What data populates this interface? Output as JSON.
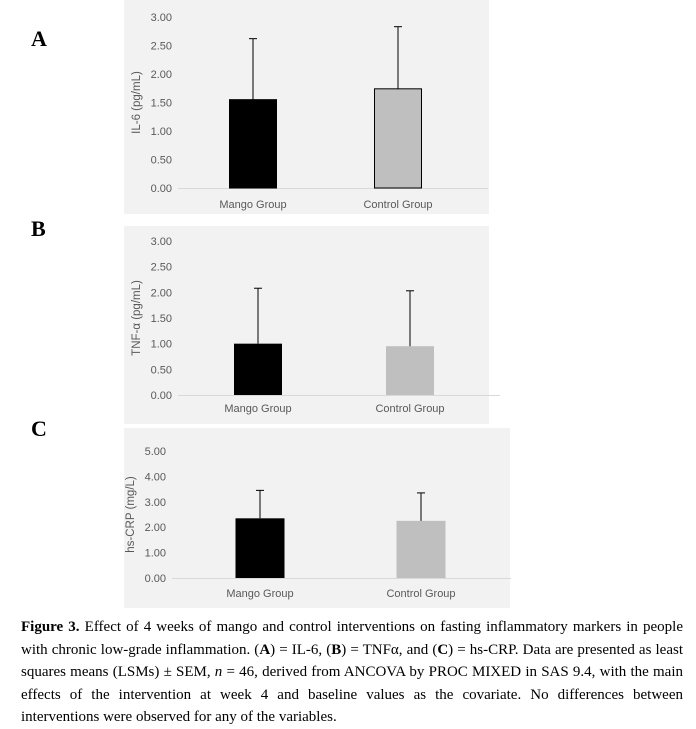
{
  "panels": [
    {
      "letter": "A"
    },
    {
      "letter": "B"
    },
    {
      "letter": "C"
    }
  ],
  "chart_data": [
    {
      "type": "bar",
      "categories": [
        "Mango Group",
        "Control Group"
      ],
      "values": [
        1.55,
        1.74
      ],
      "errors": [
        1.07,
        1.09
      ],
      "ylabel": "IL-6 (pg/mL)",
      "ylim": [
        0,
        3.0
      ],
      "ticks": [
        "0.00",
        "0.50",
        "1.00",
        "1.50",
        "2.00",
        "2.50",
        "3.00"
      ],
      "colors": [
        "#000000",
        "#bfbfbf"
      ],
      "outlined": true
    },
    {
      "type": "bar",
      "categories": [
        "Mango Group",
        "Control Group"
      ],
      "values": [
        1.0,
        0.95
      ],
      "errors": [
        1.08,
        1.08
      ],
      "ylabel": "TNF-α (pg/mL)",
      "ylim": [
        0,
        3.0
      ],
      "ticks": [
        "0.00",
        "0.50",
        "1.00",
        "1.50",
        "2.00",
        "2.50",
        "3.00"
      ],
      "colors": [
        "#000000",
        "#bfbfbf"
      ],
      "outlined": false
    },
    {
      "type": "bar",
      "categories": [
        "Mango Group",
        "Control Group"
      ],
      "values": [
        2.35,
        2.25
      ],
      "errors": [
        1.1,
        1.1
      ],
      "ylabel": "hs-CRP (mg/L)",
      "ylim": [
        0,
        5.0
      ],
      "ticks": [
        "0.00",
        "1.00",
        "2.00",
        "3.00",
        "4.00",
        "5.00"
      ],
      "colors": [
        "#000000",
        "#bfbfbf"
      ],
      "outlined": false
    }
  ],
  "caption": {
    "label": "Figure 3.",
    "p1": " Effect of 4 weeks of mango and control interventions on fasting inflammatory markers in people with chronic low-grade inflammation. (",
    "a": "A",
    "p2": ") = IL-6, (",
    "b": "B",
    "p3": ") = TNFα, and (",
    "c": "C",
    "p4": ") = hs-CRP. Data are presented as least squares means (LSMs) ± SEM, ",
    "n": "n",
    "p5": " = 46, derived from ANCOVA by PROC MIXED in SAS 9.4, with the main effects of the intervention at week 4 and baseline values as the covariate. No differences between interventions were observed for any of the variables."
  }
}
